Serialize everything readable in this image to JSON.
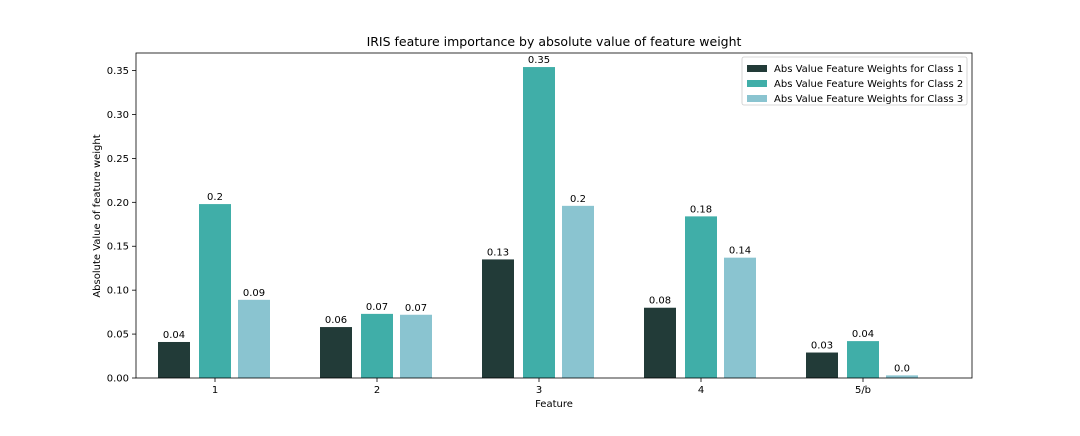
{
  "chart_data": {
    "type": "bar",
    "title": "IRIS feature importance by absolute value of feature weight",
    "xlabel": "Feature",
    "ylabel": "Absolute Value of feature weight",
    "categories": [
      "1",
      "2",
      "3",
      "4",
      "5/b"
    ],
    "ylim": [
      0,
      0.37
    ],
    "yticks": [
      0.0,
      0.05,
      0.1,
      0.15,
      0.2,
      0.25,
      0.3,
      0.35
    ],
    "ytick_labels": [
      "0.00",
      "0.05",
      "0.10",
      "0.15",
      "0.20",
      "0.25",
      "0.30",
      "0.35"
    ],
    "grid": false,
    "legend_position": "top-right",
    "series": [
      {
        "name": "Abs Value Feature Weights for Class 1",
        "color": "#223b38",
        "values": [
          0.041,
          0.058,
          0.135,
          0.08,
          0.029
        ],
        "labels": [
          "0.04",
          "0.06",
          "0.13",
          "0.08",
          "0.03"
        ]
      },
      {
        "name": "Abs Value Feature Weights for Class 2",
        "color": "#40aea8",
        "values": [
          0.198,
          0.073,
          0.354,
          0.184,
          0.042
        ],
        "labels": [
          "0.2",
          "0.07",
          "0.35",
          "0.18",
          "0.04"
        ]
      },
      {
        "name": "Abs Value Feature Weights for Class 3",
        "color": "#8ac4d0",
        "values": [
          0.089,
          0.072,
          0.196,
          0.137,
          0.003
        ],
        "labels": [
          "0.09",
          "0.07",
          "0.2",
          "0.14",
          "0.0"
        ]
      }
    ]
  }
}
